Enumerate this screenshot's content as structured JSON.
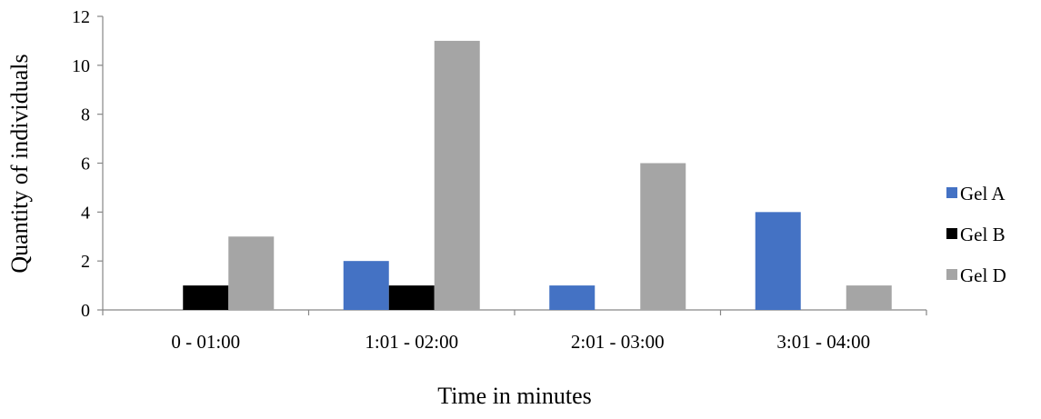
{
  "chart_data": {
    "type": "bar",
    "categories": [
      "0 - 01:00",
      "1:01 - 02:00",
      "2:01 - 03:00",
      "3:01 - 04:00"
    ],
    "series": [
      {
        "name": "Gel A",
        "values": [
          0,
          2,
          1,
          4
        ],
        "color": "#4472C4"
      },
      {
        "name": "Gel B",
        "values": [
          1,
          1,
          0,
          0
        ],
        "color": "#000000"
      },
      {
        "name": "Gel D",
        "values": [
          3,
          11,
          6,
          1
        ],
        "color": "#A5A5A5"
      }
    ],
    "xlabel": "Time in minutes",
    "ylabel": "Quantity of individuals",
    "ylim": [
      0,
      12
    ],
    "yticks": [
      0,
      2,
      4,
      6,
      8,
      10,
      12
    ],
    "grid": false,
    "legend_position": "right"
  }
}
